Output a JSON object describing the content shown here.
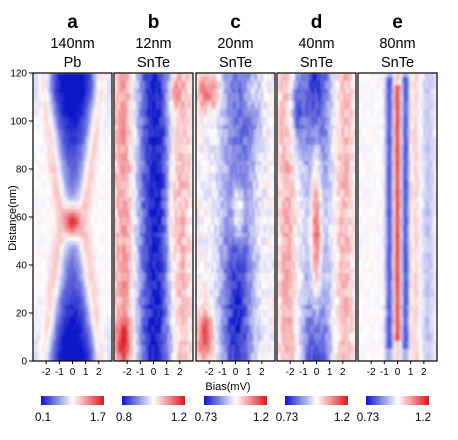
{
  "figure": {
    "y_axis_label": "Distance(nm)",
    "x_axis_label": "Bias(mV)",
    "y_ticks": [
      "0",
      "20",
      "40",
      "60",
      "80",
      "100",
      "120"
    ],
    "x_ticks": [
      "-2",
      "-1",
      "0",
      "1",
      "2"
    ],
    "colors": {
      "low": "#0b14c8",
      "mid": "#ffffff",
      "high": "#e0141c",
      "frame": "#000000"
    }
  },
  "panels": [
    {
      "letter": "a",
      "thickness": "140nm",
      "material": "Pb",
      "cbar_min": "0.1",
      "cbar_max": "1.7"
    },
    {
      "letter": "b",
      "thickness": "12nm",
      "material": "SnTe",
      "cbar_min": "0.8",
      "cbar_max": "1.2"
    },
    {
      "letter": "c",
      "thickness": "20nm",
      "material": "SnTe",
      "cbar_min": "0.73",
      "cbar_max": "1.2"
    },
    {
      "letter": "d",
      "thickness": "40nm",
      "material": "SnTe",
      "cbar_min": "0.73",
      "cbar_max": "1.2"
    },
    {
      "letter": "e",
      "thickness": "80nm",
      "material": "SnTe",
      "cbar_min": "0.73",
      "cbar_max": "1.2"
    }
  ]
}
